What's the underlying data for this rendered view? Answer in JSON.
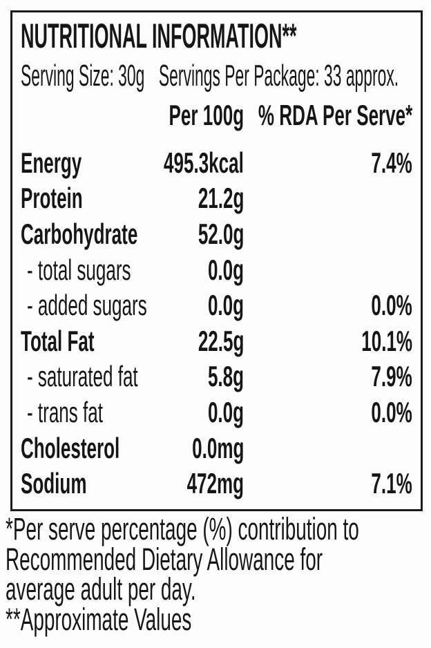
{
  "colors": {
    "ink": "#161616",
    "border": "#1b1b1b",
    "background": "#ffffff"
  },
  "label": {
    "title": "NUTRITIONAL INFORMATION**",
    "serving_size": "Serving Size: 30g",
    "servings_per_package": "Servings Per Package: 33 approx."
  },
  "table": {
    "column_headers": [
      "Per 100g",
      "% RDA Per Serve*"
    ],
    "rows": [
      {
        "name": "Energy",
        "per_100g": "495.3kcal",
        "rda_per_serve": "7.4%",
        "sub": false
      },
      {
        "name": "Protein",
        "per_100g": "21.2g",
        "rda_per_serve": "",
        "sub": false
      },
      {
        "name": "Carbohydrate",
        "per_100g": "52.0g",
        "rda_per_serve": "",
        "sub": false
      },
      {
        "name": "- total sugars",
        "per_100g": "0.0g",
        "rda_per_serve": "",
        "sub": true
      },
      {
        "name": "- added sugars",
        "per_100g": "0.0g",
        "rda_per_serve": "0.0%",
        "sub": true
      },
      {
        "name": "Total Fat",
        "per_100g": "22.5g",
        "rda_per_serve": "10.1%",
        "sub": false
      },
      {
        "name": "- saturated fat",
        "per_100g": "5.8g",
        "rda_per_serve": "7.9%",
        "sub": true
      },
      {
        "name": "- trans fat",
        "per_100g": "0.0g",
        "rda_per_serve": "0.0%",
        "sub": true
      },
      {
        "name": "Cholesterol",
        "per_100g": "0.0mg",
        "rda_per_serve": "",
        "sub": false
      },
      {
        "name": "Sodium",
        "per_100g": "472mg",
        "rda_per_serve": "7.1%",
        "sub": false
      }
    ]
  },
  "footnote_lines": [
    "*Per serve percentage (%) contribution to",
    "Recommended Dietary Allowance for",
    "average adult per day.",
    "**Approximate Values"
  ]
}
